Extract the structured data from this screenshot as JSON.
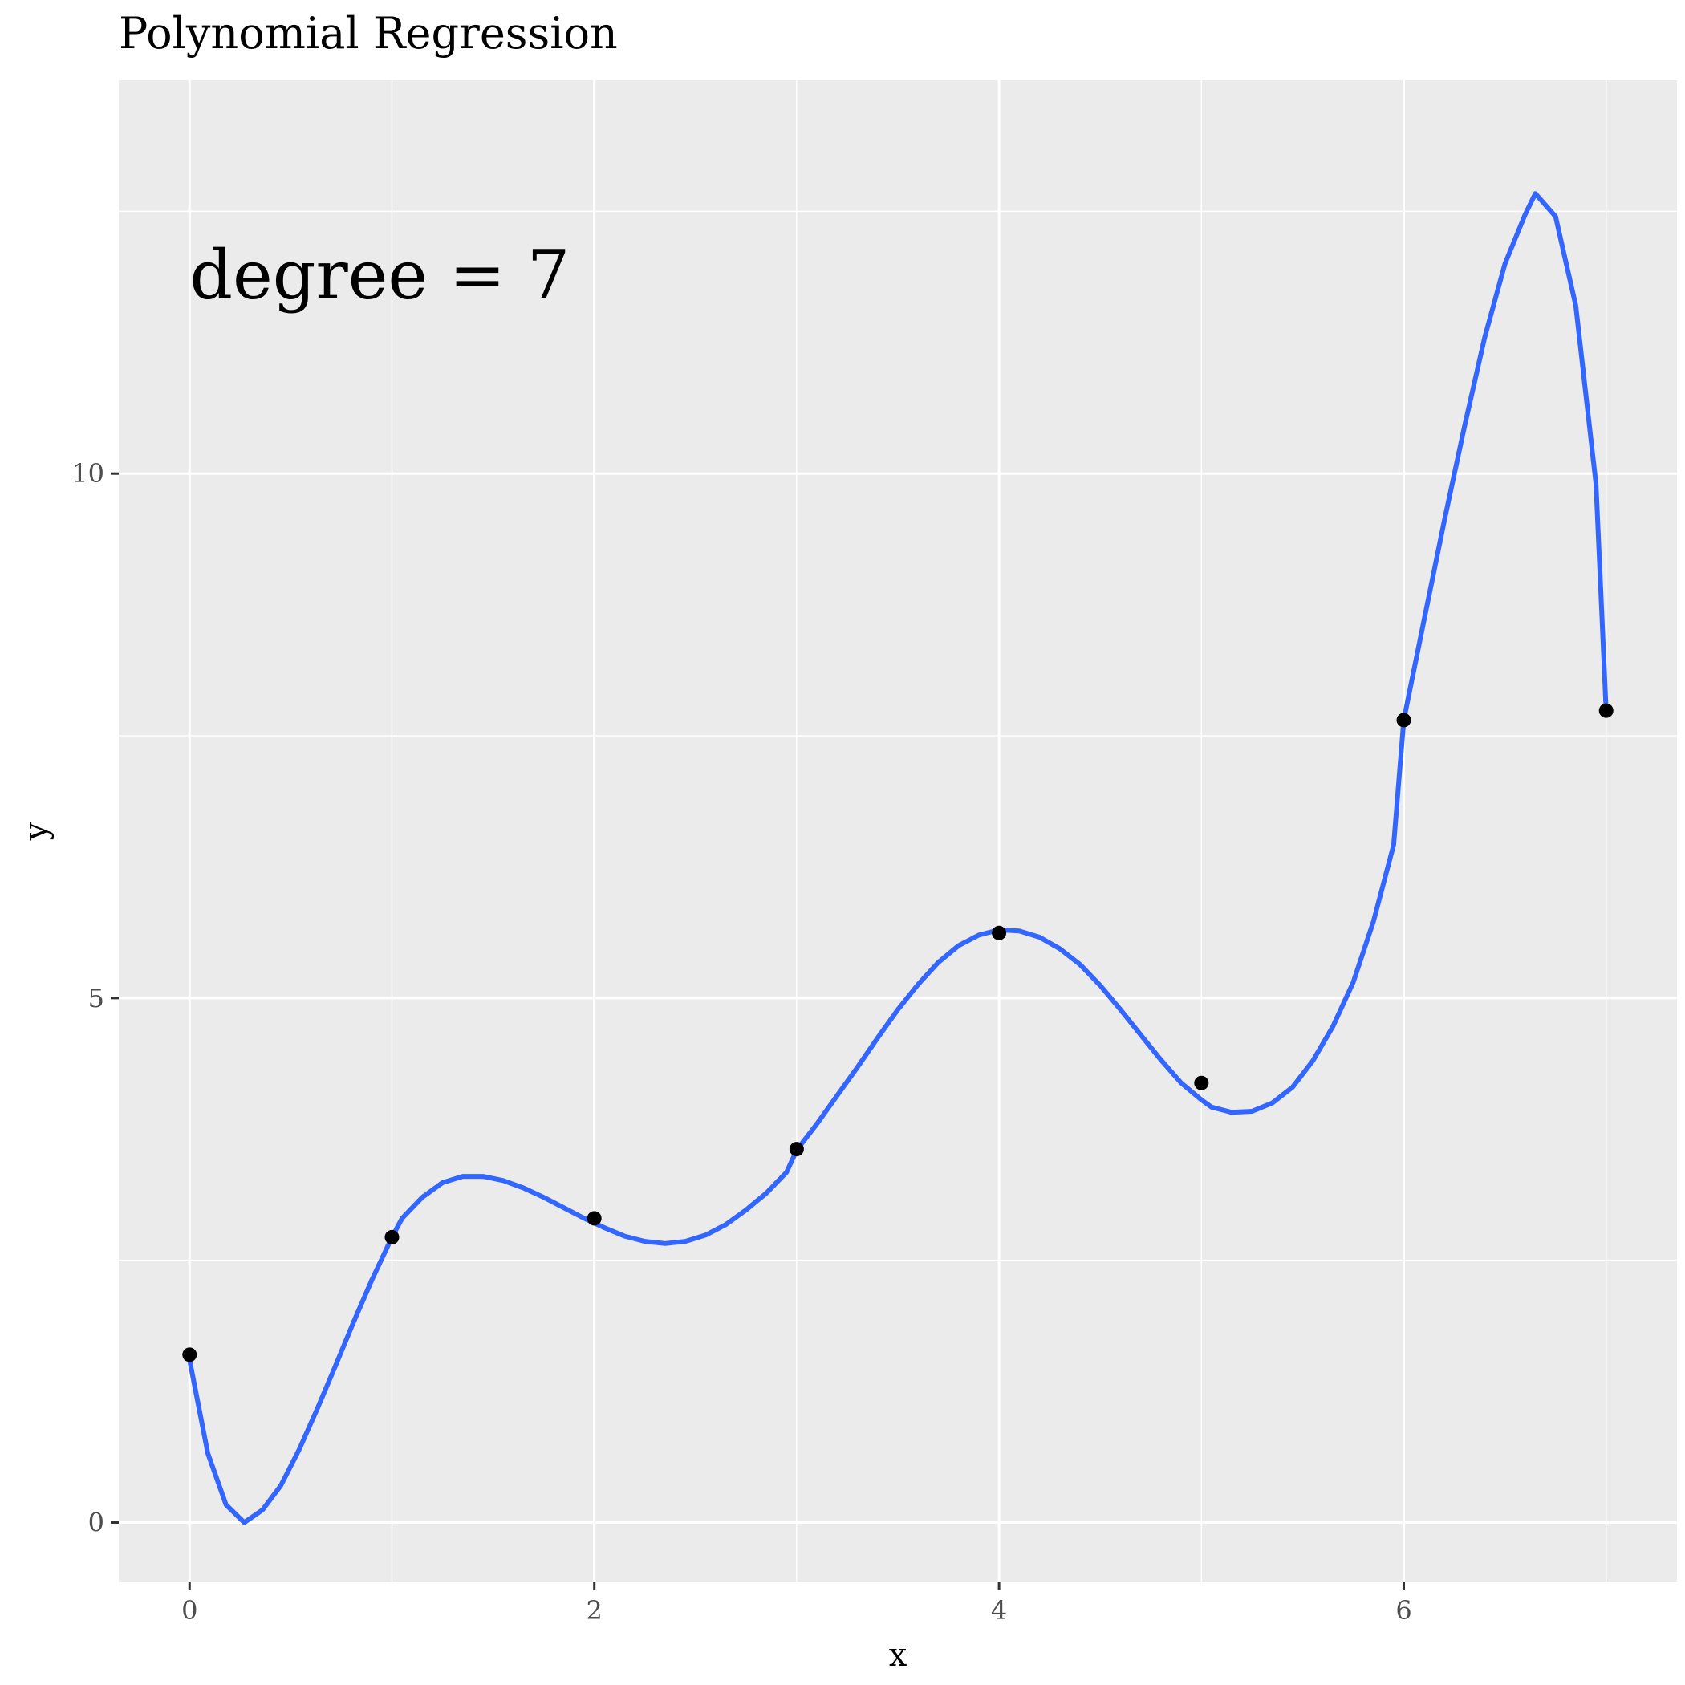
{
  "chart_data": {
    "type": "line",
    "title": "Polynomial Regression",
    "xlabel": "x",
    "ylabel": "y",
    "xlim": [
      -0.35,
      7.35
    ],
    "ylim": [
      -0.57,
      13.75
    ],
    "x_ticks": [
      0,
      2,
      4,
      6
    ],
    "x_tick_labels": [
      "0",
      "2",
      "4",
      "6"
    ],
    "y_ticks": [
      0,
      5,
      10
    ],
    "y_tick_labels": [
      "0",
      "5",
      "10"
    ],
    "x_minor_grid": [
      1,
      3,
      5,
      7
    ],
    "y_minor_grid": [
      2.5,
      7.5,
      12.5
    ],
    "grid": true,
    "legend": "none",
    "annotation": {
      "text": "degree = 7",
      "x": 0,
      "y": 11.9
    },
    "points": {
      "x": [
        0,
        1,
        2,
        3,
        4,
        5,
        6,
        7
      ],
      "y": [
        1.6,
        2.72,
        2.9,
        3.56,
        5.62,
        4.19,
        7.65,
        7.74
      ]
    },
    "fit_curve": {
      "x": [
        0,
        0.09,
        0.18,
        0.27,
        0.36,
        0.45,
        0.54,
        0.63,
        0.72,
        0.81,
        0.9,
        1.0,
        1.05,
        1.15,
        1.25,
        1.35,
        1.45,
        1.55,
        1.65,
        1.75,
        1.85,
        1.95,
        2.05,
        2.15,
        2.25,
        2.35,
        2.45,
        2.55,
        2.65,
        2.75,
        2.85,
        2.95,
        3.0,
        3.1,
        3.2,
        3.3,
        3.4,
        3.5,
        3.6,
        3.7,
        3.8,
        3.9,
        4.0,
        4.1,
        4.2,
        4.3,
        4.4,
        4.5,
        4.6,
        4.7,
        4.8,
        4.9,
        5.0,
        5.05,
        5.15,
        5.25,
        5.35,
        5.45,
        5.55,
        5.65,
        5.75,
        5.85,
        5.95,
        6.0,
        6.1,
        6.2,
        6.3,
        6.4,
        6.5,
        6.6,
        6.65,
        6.75,
        6.85,
        6.95,
        7.0
      ],
      "y": [
        1.55,
        0.66,
        0.17,
        0.0,
        0.12,
        0.35,
        0.69,
        1.08,
        1.49,
        1.91,
        2.31,
        2.72,
        2.9,
        3.1,
        3.24,
        3.3,
        3.3,
        3.26,
        3.19,
        3.1,
        3.0,
        2.9,
        2.81,
        2.73,
        2.68,
        2.66,
        2.68,
        2.74,
        2.84,
        2.98,
        3.14,
        3.34,
        3.55,
        3.8,
        4.07,
        4.34,
        4.62,
        4.89,
        5.13,
        5.34,
        5.5,
        5.6,
        5.65,
        5.64,
        5.58,
        5.47,
        5.32,
        5.12,
        4.89,
        4.65,
        4.41,
        4.19,
        4.03,
        3.96,
        3.91,
        3.92,
        4.0,
        4.15,
        4.4,
        4.73,
        5.15,
        5.73,
        6.46,
        7.65,
        8.6,
        9.55,
        10.45,
        11.3,
        12.0,
        12.47,
        12.67,
        12.45,
        11.6,
        9.9,
        7.74
      ]
    },
    "colors": {
      "panel": "#ebebeb",
      "grid": "#ffffff",
      "line": "#3366ff",
      "point": "#000000",
      "tick": "#333333"
    }
  }
}
